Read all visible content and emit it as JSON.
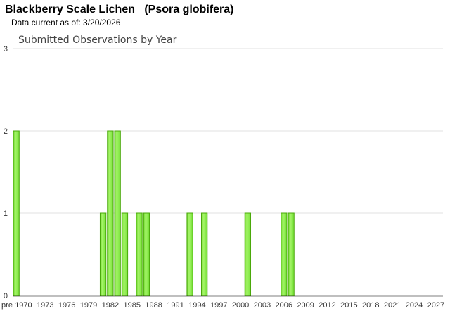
{
  "header": {
    "title": "Blackberry Scale Lichen   (Psora globifera)",
    "data_current": "Data current as of: 3/20/2026"
  },
  "chart_data": {
    "type": "bar",
    "title": "Submitted Observations by Year",
    "xlabel": "",
    "ylabel": "",
    "ylim": [
      0,
      3
    ],
    "yticks": [
      "0",
      "1",
      "2",
      "3"
    ],
    "grid": true,
    "bar_color": "#7ee83a",
    "bar_border": "#4aa80a",
    "categories": [
      "pre",
      1970,
      1971,
      1972,
      1973,
      1974,
      1975,
      1976,
      1977,
      1978,
      1979,
      1980,
      1981,
      1982,
      1983,
      1984,
      1985,
      1986,
      1987,
      1988,
      1989,
      1990,
      1991,
      1992,
      1993,
      1994,
      1995,
      1996,
      1997,
      1998,
      1999,
      2000,
      2001,
      2002,
      2003,
      2004,
      2005,
      2006,
      2007,
      2008,
      2009,
      2010,
      2011,
      2012,
      2013,
      2014,
      2015,
      2016,
      2017,
      2018,
      2019,
      2020,
      2021,
      2022,
      2023,
      2024,
      2025,
      2026,
      2027
    ],
    "xtick_labels": [
      "pre",
      "1970",
      "1973",
      "1976",
      "1979",
      "1982",
      "1985",
      "1988",
      "1991",
      "1994",
      "1997",
      "2000",
      "2003",
      "2006",
      "2009",
      "2012",
      "2015",
      "2018",
      "2021",
      "2024",
      "2027"
    ],
    "observations": {
      "pre": 2,
      "1981": 1,
      "1982": 2,
      "1983": 2,
      "1984": 1,
      "1986": 1,
      "1987": 1,
      "1993": 1,
      "1995": 1,
      "2001": 1,
      "2006": 1,
      "2007": 1
    }
  }
}
